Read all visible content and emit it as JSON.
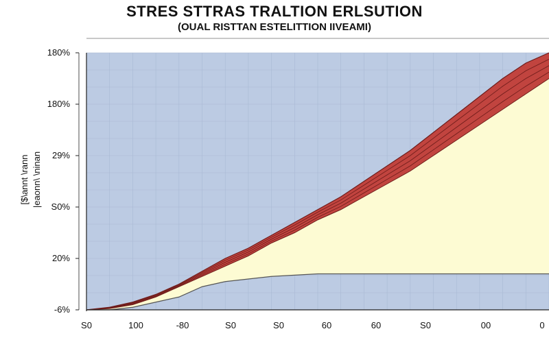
{
  "header": {
    "title": "STRES STTRAS TRALTION ERLSUTION",
    "subtitle": "(OUAL RISTTAN ESTELITTION IIVEAMI)"
  },
  "colors": {
    "plot_background": "#bccbe3",
    "grid": "#a9b9d4",
    "fill_main": "#fdfbd3",
    "fill_band": "#c1443f",
    "band_line": "#6e1c1a",
    "base_line": "#555555"
  },
  "chart_data": {
    "type": "area",
    "title": "STRES STTRAS TRALTION ERLSUTION",
    "subtitle": "(OUAL RISTTAN ESTELITTION IIVEAMI)",
    "ylabel_lines": [
      "[$\\annt \\rann",
      "|eaonn\\ \\ninan"
    ],
    "xlabel": "",
    "x_tick_labels": [
      "S0",
      "100",
      "-80",
      "S0",
      "S0",
      "60",
      "60",
      "S0",
      "00",
      "0"
    ],
    "y_tick_labels": [
      "-6%",
      "20%",
      "S0%",
      "29%",
      "180%",
      "180%"
    ],
    "ylim": [
      0,
      100
    ],
    "xlim": [
      0,
      100
    ],
    "grid": true,
    "series": [
      {
        "x": [
          0,
          5,
          10,
          15,
          20,
          25,
          30,
          35,
          40,
          45,
          50,
          55,
          60,
          65,
          70,
          75,
          80,
          85,
          90,
          95,
          100
        ],
        "values": [
          0,
          0,
          1,
          3,
          5,
          9,
          11,
          12,
          13,
          13.5,
          14,
          14,
          14,
          14,
          14,
          14,
          14,
          14,
          14,
          14,
          14
        ]
      },
      {
        "x": [
          0,
          5,
          10,
          15,
          20,
          25,
          30,
          35,
          40,
          45,
          50,
          55,
          60,
          65,
          70,
          75,
          80,
          85,
          90,
          95,
          100
        ],
        "values": [
          0,
          0.5,
          2,
          5,
          9,
          13,
          17,
          21,
          26,
          30,
          35,
          39,
          44,
          49,
          54,
          60,
          66,
          72,
          78,
          84,
          90
        ]
      },
      {
        "x": [
          0,
          5,
          10,
          15,
          20,
          25,
          30,
          35,
          40,
          45,
          50,
          55,
          60,
          65,
          70,
          75,
          80,
          85,
          90,
          95,
          100
        ],
        "values": [
          0,
          1,
          3,
          6,
          10,
          15,
          20,
          24,
          29,
          34,
          39,
          44,
          50,
          56,
          62,
          69,
          76,
          83,
          90,
          96,
          100
        ]
      }
    ]
  }
}
